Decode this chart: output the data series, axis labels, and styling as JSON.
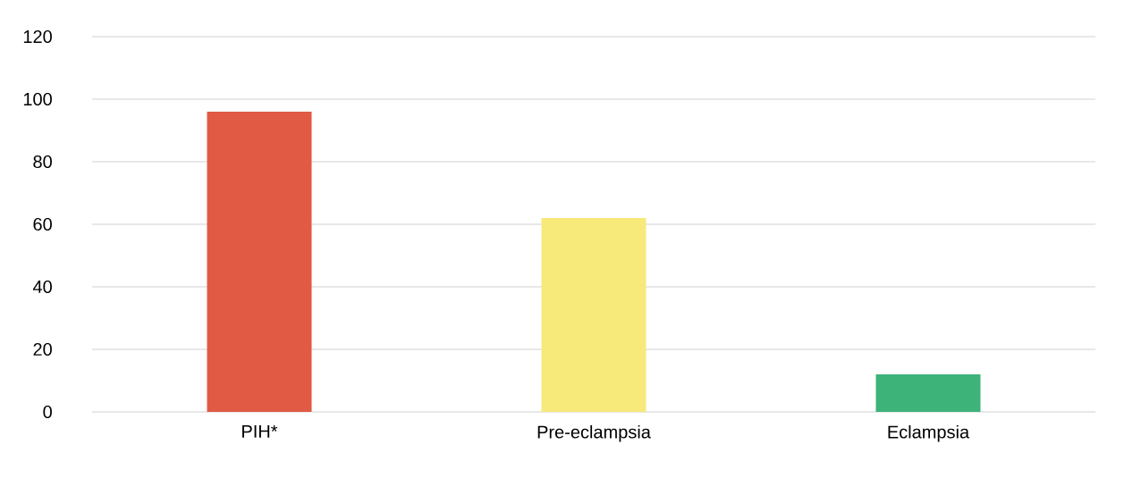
{
  "chart_data": {
    "type": "bar",
    "categories": [
      "PIH*",
      "Pre-eclampsia",
      "Eclampsia"
    ],
    "values": [
      96,
      62,
      12
    ],
    "colors": [
      "#e05a44",
      "#f7e97a",
      "#3db37a"
    ],
    "ylim": [
      0,
      120
    ],
    "yticks": [
      0,
      20,
      40,
      60,
      80,
      100,
      120
    ],
    "grid": "y"
  }
}
